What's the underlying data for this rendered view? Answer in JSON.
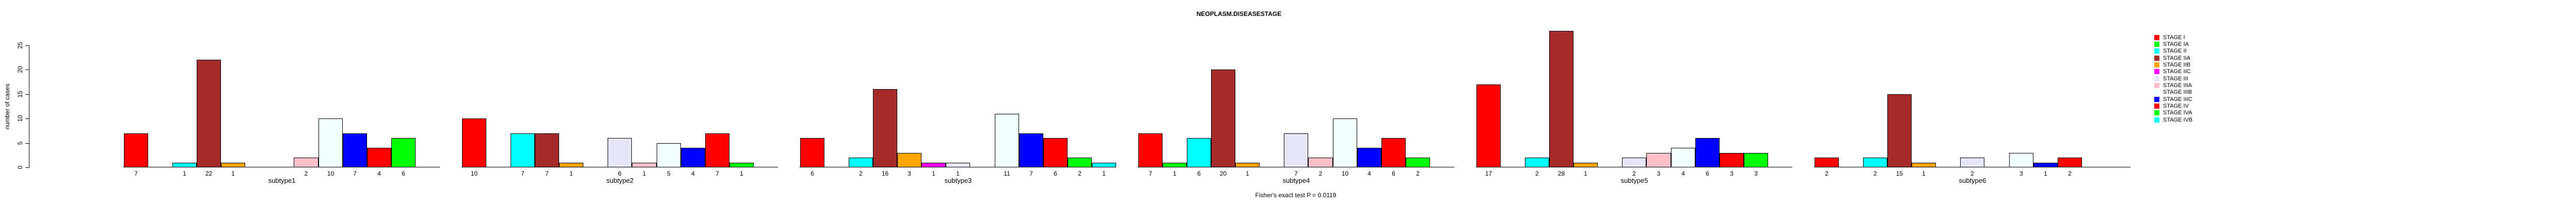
{
  "title": "NEOPLASM.DISEASESTAGE",
  "ylabel": "number of cases",
  "caption": "Fisher's exact test P = 0.0119",
  "chart_data": {
    "type": "bar",
    "title": "NEOPLASM.DISEASESTAGE",
    "xlabel": "",
    "ylabel": "number of cases",
    "ylim": [
      0,
      25
    ],
    "yticks": [
      0,
      5,
      10,
      15,
      20,
      25
    ],
    "grid": false,
    "legend_position": "right",
    "annotation": "Fisher's exact test P = 0.0119",
    "stages": [
      "STAGE I",
      "STAGE IA",
      "STAGE II",
      "STAGE IIA",
      "STAGE IIB",
      "STAGE IIC",
      "STAGE III",
      "STAGE IIIA",
      "STAGE IIIB",
      "STAGE IIIC",
      "STAGE IV",
      "STAGE IVA",
      "STAGE IVB"
    ],
    "stage_colors": [
      "#FF0000",
      "#00FF00",
      "#00FFFF",
      "#A52A2A",
      "#FFA500",
      "#FF00FF",
      "#E6E6FA",
      "#FFC0CB",
      "#F0FFFF",
      "#0000FF",
      "#FF0000",
      "#00FF00",
      "#00FFFF"
    ],
    "bar_border_color": "#000000",
    "groups": [
      {
        "label": "subtype1",
        "values": [
          7,
          0,
          1,
          22,
          1,
          0,
          0,
          2,
          10,
          7,
          4,
          6,
          0
        ]
      },
      {
        "label": "subtype2",
        "values": [
          10,
          0,
          7,
          7,
          1,
          0,
          6,
          1,
          5,
          4,
          7,
          1,
          0
        ]
      },
      {
        "label": "subtype3",
        "values": [
          6,
          0,
          2,
          16,
          3,
          1,
          1,
          0,
          11,
          7,
          6,
          2,
          1
        ]
      },
      {
        "label": "subtype4",
        "values": [
          7,
          1,
          6,
          20,
          1,
          0,
          7,
          2,
          10,
          4,
          6,
          2,
          0
        ]
      },
      {
        "label": "subtype5",
        "values": [
          17,
          0,
          2,
          28,
          1,
          0,
          2,
          3,
          4,
          6,
          3,
          3,
          0
        ]
      },
      {
        "label": "subtype6",
        "values": [
          2,
          0,
          2,
          15,
          1,
          0,
          2,
          0,
          3,
          1,
          2,
          0,
          0
        ]
      }
    ]
  },
  "legend": {
    "items": [
      {
        "label": "STAGE I",
        "color": "#FF0000"
      },
      {
        "label": "STAGE IA",
        "color": "#00FF00"
      },
      {
        "label": "STAGE II",
        "color": "#00FFFF"
      },
      {
        "label": "STAGE IIA",
        "color": "#A52A2A"
      },
      {
        "label": "STAGE IIB",
        "color": "#FFA500"
      },
      {
        "label": "STAGE IIC",
        "color": "#FF00FF"
      },
      {
        "label": "STAGE III",
        "color": "#E6E6FA"
      },
      {
        "label": "STAGE IIIA",
        "color": "#FFC0CB"
      },
      {
        "label": "STAGE IIIB",
        "color": "#F0FFFF"
      },
      {
        "label": "STAGE IIIC",
        "color": "#0000FF"
      },
      {
        "label": "STAGE IV",
        "color": "#FF0000"
      },
      {
        "label": "STAGE IVA",
        "color": "#00FF00"
      },
      {
        "label": "STAGE IVB",
        "color": "#00FFFF"
      }
    ]
  }
}
